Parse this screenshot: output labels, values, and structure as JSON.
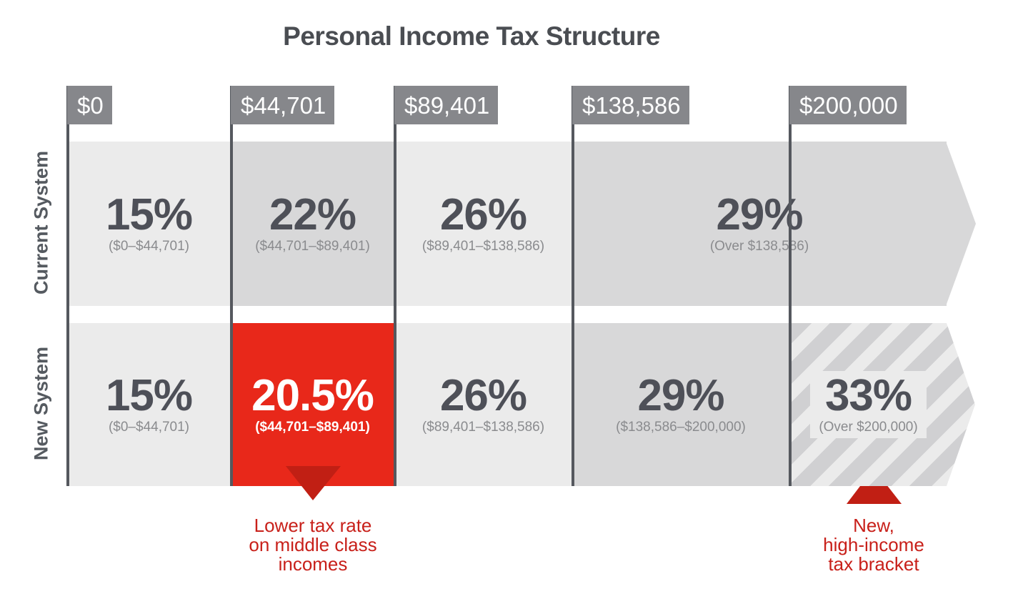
{
  "title": "Personal Income Tax Structure",
  "thresholds": [
    "$0",
    "$44,701",
    "$89,401",
    "$138,586",
    "$200,000"
  ],
  "rows": {
    "current": {
      "label": "Current System",
      "brackets": [
        {
          "rate": "15%",
          "range": "($0–$44,701)"
        },
        {
          "rate": "22%",
          "range": "($44,701–$89,401)"
        },
        {
          "rate": "26%",
          "range": "($89,401–$138,586)"
        },
        {
          "rate": "29%",
          "range": "(Over $138,586)"
        }
      ]
    },
    "new": {
      "label": "New System",
      "brackets": [
        {
          "rate": "15%",
          "range": "($0–$44,701)"
        },
        {
          "rate": "20.5%",
          "range": "($44,701–$89,401)"
        },
        {
          "rate": "26%",
          "range": "($89,401–$138,586)"
        },
        {
          "rate": "29%",
          "range": "($138,586–$200,000)"
        },
        {
          "rate": "33%",
          "range": "(Over $200,000)"
        }
      ]
    }
  },
  "annotations": {
    "middle": [
      "Lower tax rate",
      "on middle class",
      "incomes"
    ],
    "high": [
      "New,",
      "high-income",
      "tax bracket"
    ]
  },
  "colors": {
    "accent": "#e8281a",
    "annotation": "#c8201a",
    "light": "#ebebeb",
    "dark": "#d8d8d9"
  }
}
